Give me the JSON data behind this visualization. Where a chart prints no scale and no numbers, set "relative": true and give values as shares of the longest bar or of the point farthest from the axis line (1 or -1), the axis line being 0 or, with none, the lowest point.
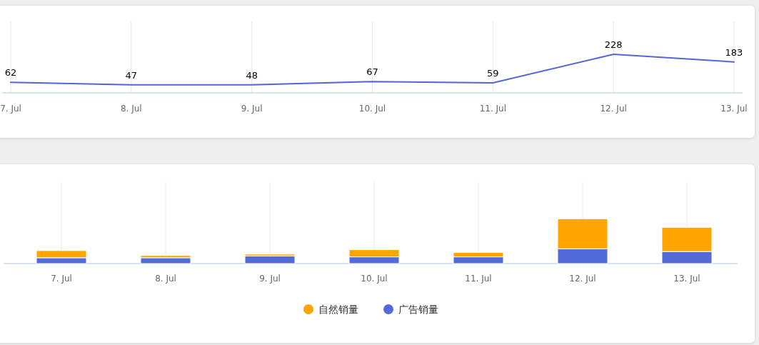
{
  "chart_data": [
    {
      "type": "line",
      "categories": [
        "7. Jul",
        "8. Jul",
        "9. Jul",
        "10. Jul",
        "11. Jul",
        "12. Jul",
        "13. Jul"
      ],
      "series": [
        {
          "color": "#5567d3",
          "values": [
            62,
            47,
            48,
            67,
            59,
            228,
            183
          ]
        }
      ],
      "data_labels": true,
      "grid": "x"
    },
    {
      "type": "bar",
      "stacked": true,
      "relative": true,
      "categories": [
        "7. Jul",
        "8. Jul",
        "9. Jul",
        "10. Jul",
        "11. Jul",
        "12. Jul",
        "13. Jul"
      ],
      "series": [
        {
          "name": "广告销量",
          "color": "#536bd6",
          "values": [
            0.13,
            0.13,
            0.17,
            0.15,
            0.15,
            0.33,
            0.27
          ]
        },
        {
          "name": "自然销量",
          "color": "#ffa500",
          "values": [
            0.16,
            0.05,
            0.04,
            0.16,
            0.1,
            0.67,
            0.54
          ]
        }
      ],
      "grid": "x",
      "legend": "bottom"
    }
  ]
}
